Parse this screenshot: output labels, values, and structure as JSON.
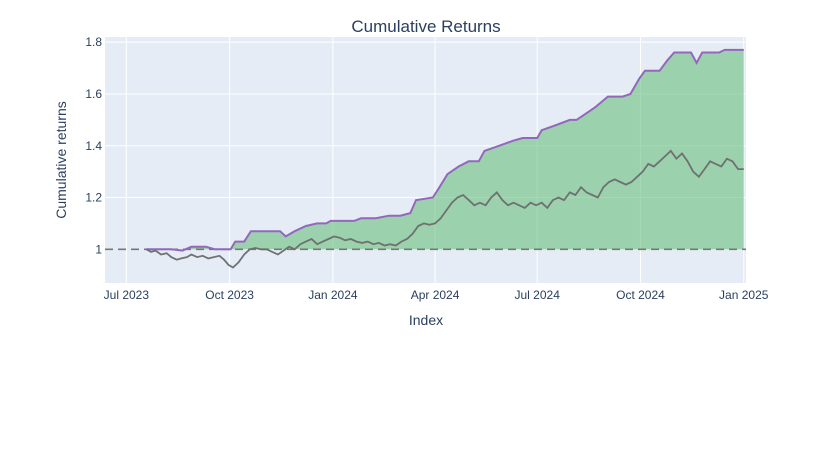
{
  "chart_data": {
    "type": "area",
    "title": "Cumulative Returns",
    "xlabel": "Index",
    "ylabel": "Cumulative returns",
    "x_type": "date",
    "xlim": [
      "2023-06-12",
      "2025-01-03"
    ],
    "ylim": [
      0.87,
      1.82
    ],
    "x_ticks": [
      {
        "date": "2023-07-01",
        "label": "Jul 2023"
      },
      {
        "date": "2023-10-01",
        "label": "Oct 2023"
      },
      {
        "date": "2024-01-01",
        "label": "Jan 2024"
      },
      {
        "date": "2024-04-01",
        "label": "Apr 2024"
      },
      {
        "date": "2024-07-01",
        "label": "Jul 2024"
      },
      {
        "date": "2024-10-01",
        "label": "Oct 2024"
      },
      {
        "date": "2025-01-01",
        "label": "Jan 2025"
      }
    ],
    "y_ticks": [
      {
        "value": 1.0,
        "label": "1"
      },
      {
        "value": 1.2,
        "label": "1.2"
      },
      {
        "value": 1.4,
        "label": "1.4"
      },
      {
        "value": 1.6,
        "label": "1.6"
      },
      {
        "value": 1.8,
        "label": "1.8"
      }
    ],
    "baseline": 1.0,
    "grid": true,
    "series": [
      {
        "role": "upper-envelope",
        "color": "#9467bd",
        "points": [
          [
            "2023-07-19",
            1.0
          ],
          [
            "2023-07-25",
            1.0
          ],
          [
            "2023-08-01",
            1.0
          ],
          [
            "2023-08-10",
            1.0
          ],
          [
            "2023-08-20",
            0.995
          ],
          [
            "2023-08-28",
            1.01
          ],
          [
            "2023-09-10",
            1.01
          ],
          [
            "2023-09-18",
            1.0
          ],
          [
            "2023-09-28",
            1.0
          ],
          [
            "2023-10-02",
            1.0
          ],
          [
            "2023-10-06",
            1.03
          ],
          [
            "2023-10-14",
            1.03
          ],
          [
            "2023-10-20",
            1.07
          ],
          [
            "2023-11-05",
            1.07
          ],
          [
            "2023-11-15",
            1.07
          ],
          [
            "2023-11-20",
            1.05
          ],
          [
            "2023-11-28",
            1.07
          ],
          [
            "2023-12-08",
            1.09
          ],
          [
            "2023-12-18",
            1.1
          ],
          [
            "2023-12-26",
            1.1
          ],
          [
            "2023-12-30",
            1.11
          ],
          [
            "2024-01-20",
            1.11
          ],
          [
            "2024-01-26",
            1.12
          ],
          [
            "2024-02-08",
            1.12
          ],
          [
            "2024-02-20",
            1.13
          ],
          [
            "2024-03-01",
            1.13
          ],
          [
            "2024-03-10",
            1.14
          ],
          [
            "2024-03-15",
            1.19
          ],
          [
            "2024-03-30",
            1.2
          ],
          [
            "2024-04-05",
            1.24
          ],
          [
            "2024-04-12",
            1.29
          ],
          [
            "2024-04-22",
            1.32
          ],
          [
            "2024-05-01",
            1.34
          ],
          [
            "2024-05-10",
            1.34
          ],
          [
            "2024-05-15",
            1.38
          ],
          [
            "2024-05-28",
            1.4
          ],
          [
            "2024-06-10",
            1.42
          ],
          [
            "2024-06-18",
            1.43
          ],
          [
            "2024-07-01",
            1.43
          ],
          [
            "2024-07-05",
            1.46
          ],
          [
            "2024-07-18",
            1.48
          ],
          [
            "2024-07-30",
            1.5
          ],
          [
            "2024-08-05",
            1.5
          ],
          [
            "2024-08-12",
            1.52
          ],
          [
            "2024-08-22",
            1.55
          ],
          [
            "2024-09-02",
            1.59
          ],
          [
            "2024-09-15",
            1.59
          ],
          [
            "2024-09-22",
            1.6
          ],
          [
            "2024-09-30",
            1.66
          ],
          [
            "2024-10-05",
            1.69
          ],
          [
            "2024-10-18",
            1.69
          ],
          [
            "2024-10-25",
            1.73
          ],
          [
            "2024-10-31",
            1.76
          ],
          [
            "2024-11-08",
            1.76
          ],
          [
            "2024-11-15",
            1.76
          ],
          [
            "2024-11-20",
            1.72
          ],
          [
            "2024-11-25",
            1.76
          ],
          [
            "2024-12-10",
            1.76
          ],
          [
            "2024-12-15",
            1.77
          ],
          [
            "2025-01-01",
            1.77
          ]
        ]
      },
      {
        "role": "cumulative-returns",
        "color": "#6b6b6b",
        "points": [
          [
            "2023-07-19",
            1.0
          ],
          [
            "2023-07-23",
            0.99
          ],
          [
            "2023-07-27",
            0.995
          ],
          [
            "2023-08-01",
            0.98
          ],
          [
            "2023-08-06",
            0.985
          ],
          [
            "2023-08-10",
            0.97
          ],
          [
            "2023-08-15",
            0.96
          ],
          [
            "2023-08-19",
            0.965
          ],
          [
            "2023-08-24",
            0.97
          ],
          [
            "2023-08-28",
            0.98
          ],
          [
            "2023-09-02",
            0.97
          ],
          [
            "2023-09-07",
            0.975
          ],
          [
            "2023-09-12",
            0.965
          ],
          [
            "2023-09-17",
            0.97
          ],
          [
            "2023-09-22",
            0.975
          ],
          [
            "2023-09-26",
            0.96
          ],
          [
            "2023-09-30",
            0.94
          ],
          [
            "2023-10-04",
            0.93
          ],
          [
            "2023-10-09",
            0.95
          ],
          [
            "2023-10-14",
            0.98
          ],
          [
            "2023-10-19",
            1.0
          ],
          [
            "2023-10-24",
            1.005
          ],
          [
            "2023-10-29",
            1.0
          ],
          [
            "2023-11-03",
            1.0
          ],
          [
            "2023-11-08",
            0.99
          ],
          [
            "2023-11-13",
            0.98
          ],
          [
            "2023-11-18",
            0.995
          ],
          [
            "2023-11-23",
            1.01
          ],
          [
            "2023-11-28",
            1.0
          ],
          [
            "2023-12-03",
            1.02
          ],
          [
            "2023-12-08",
            1.03
          ],
          [
            "2023-12-13",
            1.04
          ],
          [
            "2023-12-18",
            1.02
          ],
          [
            "2023-12-23",
            1.03
          ],
          [
            "2023-12-28",
            1.04
          ],
          [
            "2024-01-02",
            1.05
          ],
          [
            "2024-01-07",
            1.045
          ],
          [
            "2024-01-12",
            1.035
          ],
          [
            "2024-01-17",
            1.04
          ],
          [
            "2024-01-22",
            1.03
          ],
          [
            "2024-01-27",
            1.025
          ],
          [
            "2024-02-01",
            1.03
          ],
          [
            "2024-02-06",
            1.02
          ],
          [
            "2024-02-11",
            1.025
          ],
          [
            "2024-02-16",
            1.015
          ],
          [
            "2024-02-21",
            1.02
          ],
          [
            "2024-02-26",
            1.015
          ],
          [
            "2024-03-02",
            1.03
          ],
          [
            "2024-03-07",
            1.04
          ],
          [
            "2024-03-12",
            1.06
          ],
          [
            "2024-03-17",
            1.09
          ],
          [
            "2024-03-22",
            1.1
          ],
          [
            "2024-03-27",
            1.095
          ],
          [
            "2024-04-01",
            1.1
          ],
          [
            "2024-04-06",
            1.12
          ],
          [
            "2024-04-11",
            1.15
          ],
          [
            "2024-04-16",
            1.18
          ],
          [
            "2024-04-21",
            1.2
          ],
          [
            "2024-04-26",
            1.21
          ],
          [
            "2024-05-01",
            1.19
          ],
          [
            "2024-05-06",
            1.17
          ],
          [
            "2024-05-11",
            1.18
          ],
          [
            "2024-05-16",
            1.17
          ],
          [
            "2024-05-21",
            1.2
          ],
          [
            "2024-05-26",
            1.22
          ],
          [
            "2024-05-31",
            1.19
          ],
          [
            "2024-06-05",
            1.17
          ],
          [
            "2024-06-10",
            1.18
          ],
          [
            "2024-06-15",
            1.17
          ],
          [
            "2024-06-20",
            1.16
          ],
          [
            "2024-06-25",
            1.18
          ],
          [
            "2024-06-30",
            1.17
          ],
          [
            "2024-07-05",
            1.18
          ],
          [
            "2024-07-10",
            1.16
          ],
          [
            "2024-07-15",
            1.19
          ],
          [
            "2024-07-20",
            1.2
          ],
          [
            "2024-07-25",
            1.19
          ],
          [
            "2024-07-30",
            1.22
          ],
          [
            "2024-08-04",
            1.21
          ],
          [
            "2024-08-09",
            1.24
          ],
          [
            "2024-08-14",
            1.22
          ],
          [
            "2024-08-19",
            1.21
          ],
          [
            "2024-08-24",
            1.2
          ],
          [
            "2024-08-29",
            1.24
          ],
          [
            "2024-09-03",
            1.26
          ],
          [
            "2024-09-08",
            1.27
          ],
          [
            "2024-09-13",
            1.26
          ],
          [
            "2024-09-18",
            1.25
          ],
          [
            "2024-09-23",
            1.26
          ],
          [
            "2024-09-28",
            1.28
          ],
          [
            "2024-10-03",
            1.3
          ],
          [
            "2024-10-08",
            1.33
          ],
          [
            "2024-10-13",
            1.32
          ],
          [
            "2024-10-18",
            1.34
          ],
          [
            "2024-10-23",
            1.36
          ],
          [
            "2024-10-28",
            1.38
          ],
          [
            "2024-11-02",
            1.35
          ],
          [
            "2024-11-07",
            1.37
          ],
          [
            "2024-11-12",
            1.34
          ],
          [
            "2024-11-17",
            1.3
          ],
          [
            "2024-11-22",
            1.28
          ],
          [
            "2024-11-27",
            1.31
          ],
          [
            "2024-12-02",
            1.34
          ],
          [
            "2024-12-07",
            1.33
          ],
          [
            "2024-12-12",
            1.32
          ],
          [
            "2024-12-17",
            1.35
          ],
          [
            "2024-12-22",
            1.34
          ],
          [
            "2024-12-27",
            1.31
          ],
          [
            "2025-01-01",
            1.31
          ]
        ]
      }
    ],
    "colors": {
      "plot_background": "#e5ecf6",
      "fill": "#6bbf7e",
      "baseline": "#777777"
    }
  }
}
